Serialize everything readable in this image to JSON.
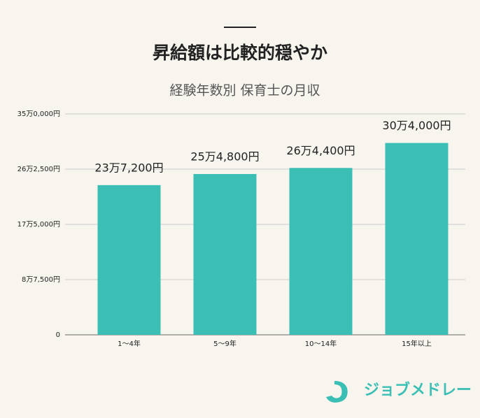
{
  "chart_data": {
    "type": "bar",
    "title": "昇給額は比較的穏やか",
    "subtitle": "経験年数別 保育士の月収",
    "categories": [
      "1〜4年",
      "5〜9年",
      "10〜14年",
      "15年以上"
    ],
    "values": [
      237200,
      254800,
      264400,
      304000
    ],
    "value_labels": [
      "23万7,200円",
      "25万4,800円",
      "26万4,400円",
      "30万4,000円"
    ],
    "color": "#3bbfb5",
    "ylim": [
      0,
      350000
    ],
    "yticks": [
      0,
      {
        "value": 87500,
        "label": "8万7,500円"
      },
      {
        "value": 175000,
        "label": "17万5,000円"
      },
      {
        "value": 262500,
        "label": "26万2,500円"
      },
      {
        "value": 350000,
        "label": "35万0,000円"
      }
    ],
    "grid": true
  },
  "brand": "ジョブメドレー"
}
